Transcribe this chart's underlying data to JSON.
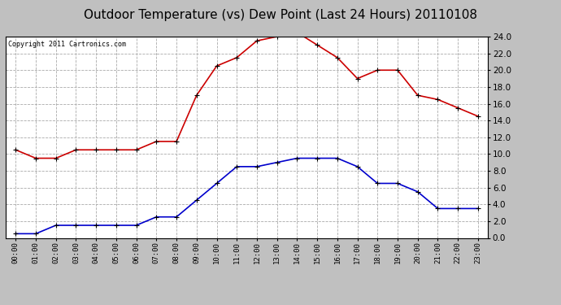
{
  "title": "Outdoor Temperature (vs) Dew Point (Last 24 Hours) 20110108",
  "copyright": "Copyright 2011 Cartronics.com",
  "hours": [
    "00:00",
    "01:00",
    "02:00",
    "03:00",
    "04:00",
    "05:00",
    "06:00",
    "07:00",
    "08:00",
    "09:00",
    "10:00",
    "11:00",
    "12:00",
    "13:00",
    "14:00",
    "15:00",
    "16:00",
    "17:00",
    "18:00",
    "19:00",
    "20:00",
    "21:00",
    "22:00",
    "23:00"
  ],
  "temp": [
    10.5,
    9.5,
    9.5,
    10.5,
    10.5,
    10.5,
    10.5,
    11.5,
    11.5,
    17.0,
    20.5,
    21.5,
    23.5,
    24.0,
    24.5,
    23.0,
    21.5,
    19.0,
    20.0,
    20.0,
    17.0,
    16.5,
    15.5,
    14.5
  ],
  "dewpoint": [
    0.5,
    0.5,
    1.5,
    1.5,
    1.5,
    1.5,
    1.5,
    2.5,
    2.5,
    4.5,
    6.5,
    8.5,
    8.5,
    9.0,
    9.5,
    9.5,
    9.5,
    8.5,
    6.5,
    6.5,
    5.5,
    3.5,
    3.5,
    3.5
  ],
  "temp_color": "#cc0000",
  "dewpoint_color": "#0000cc",
  "background_color": "#c0c0c0",
  "grid_color": "#aaaaaa",
  "plot_bg_color": "#ffffff",
  "ylim": [
    0.0,
    24.0
  ],
  "yticks": [
    0.0,
    2.0,
    4.0,
    6.0,
    8.0,
    10.0,
    12.0,
    14.0,
    16.0,
    18.0,
    20.0,
    22.0,
    24.0
  ],
  "title_fontsize": 11,
  "copyright_fontsize": 6,
  "xtick_fontsize": 6.5,
  "ytick_fontsize": 7.5
}
